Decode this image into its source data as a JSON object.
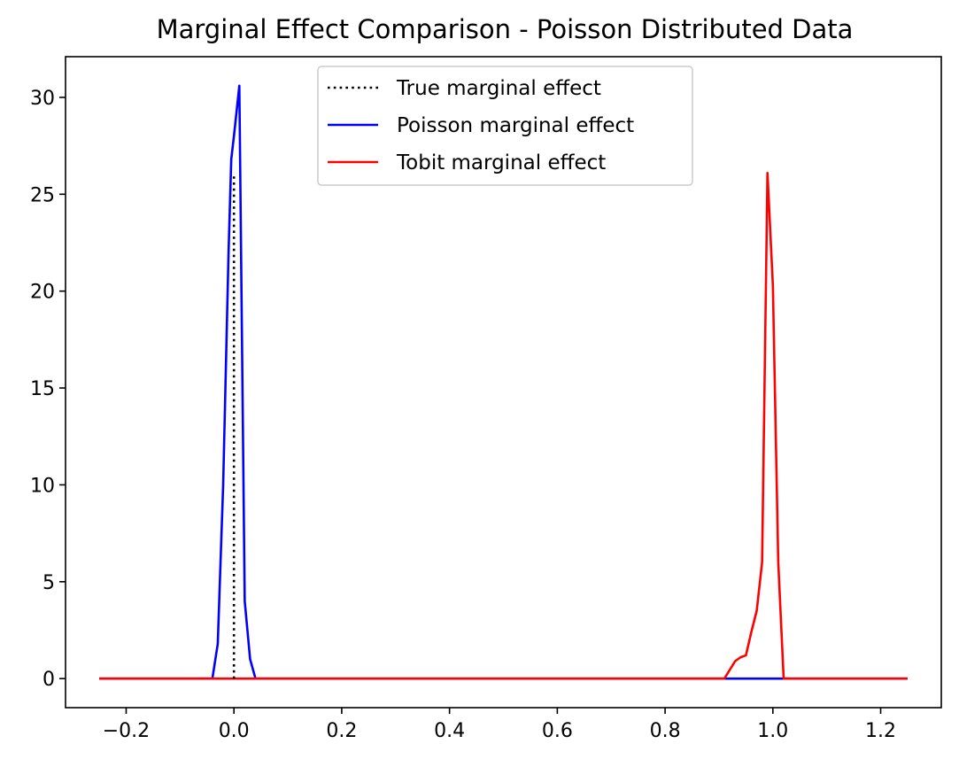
{
  "chart_data": {
    "type": "line",
    "title": "Marginal Effect Comparison - Poisson Distributed Data",
    "xlabel": "",
    "ylabel": "",
    "xlim": [
      -0.3125,
      1.3125
    ],
    "ylim": [
      -1.5,
      32.1
    ],
    "xticks": [
      -0.2,
      0.0,
      0.2,
      0.4,
      0.6,
      0.8,
      1.0,
      1.2
    ],
    "xtick_labels": [
      "−0.2",
      "0.0",
      "0.2",
      "0.4",
      "0.6",
      "0.8",
      "1.0",
      "1.2"
    ],
    "yticks": [
      0,
      5,
      10,
      15,
      20,
      25,
      30
    ],
    "ytick_labels": [
      "0",
      "5",
      "10",
      "15",
      "20",
      "25",
      "30"
    ],
    "grid": false,
    "legend_position": "top-center",
    "series": [
      {
        "name": "True marginal effect",
        "color": "#000000",
        "style": "dotted",
        "x": [
          0.0,
          0.0
        ],
        "y": [
          0.0,
          26.0
        ]
      },
      {
        "name": "Poisson marginal effect",
        "color": "#0000ff",
        "style": "solid",
        "x": [
          -0.25,
          -0.04,
          -0.03,
          -0.02,
          -0.01,
          -0.005,
          0.0,
          0.01,
          0.02,
          0.03,
          0.04,
          1.25
        ],
        "y": [
          0,
          0,
          1.8,
          10,
          22,
          26.8,
          28,
          30.6,
          4,
          1,
          0,
          0
        ]
      },
      {
        "name": "Tobit marginal effect",
        "color": "#ff0000",
        "style": "solid",
        "x": [
          -0.25,
          0.91,
          0.93,
          0.94,
          0.95,
          0.96,
          0.97,
          0.98,
          0.99,
          1.0,
          1.01,
          1.02,
          1.25
        ],
        "y": [
          0,
          0,
          0.9,
          1.1,
          1.2,
          2.4,
          3.5,
          6,
          26.1,
          20.3,
          6,
          0,
          0
        ]
      }
    ]
  }
}
